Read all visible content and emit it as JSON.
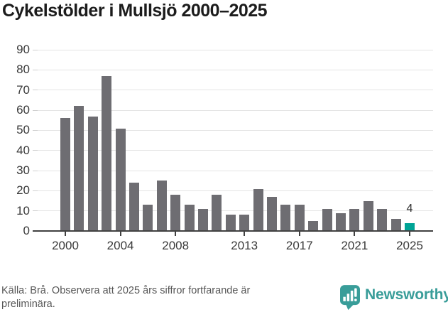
{
  "title": "Cykelstölder i Mullsjö 2000–2025",
  "chart_data": {
    "type": "bar",
    "title": "Cykelstölder i Mullsjö 2000–2025",
    "categories": [
      "2000",
      "2001",
      "2002",
      "2003",
      "2004",
      "2005",
      "2006",
      "2007",
      "2008",
      "2009",
      "2010",
      "2011",
      "2012",
      "2013",
      "2014",
      "2015",
      "2016",
      "2017",
      "2018",
      "2019",
      "2020",
      "2021",
      "2022",
      "2023",
      "2024",
      "2025"
    ],
    "values": [
      56,
      62,
      57,
      77,
      51,
      24,
      13,
      25,
      18,
      13,
      11,
      18,
      8,
      8,
      21,
      17,
      13,
      13,
      5,
      11,
      9,
      11,
      15,
      11,
      6,
      4
    ],
    "xlabel": "",
    "ylabel": "",
    "ylim": [
      0,
      90
    ],
    "y_ticks": [
      0,
      10,
      20,
      30,
      40,
      50,
      60,
      70,
      80,
      90
    ],
    "x_tick_labels": [
      "2000",
      "2004",
      "2008",
      "2013",
      "2017",
      "2021",
      "2025"
    ],
    "grid": true,
    "legend_position": "none",
    "bar_color": "#6e6d72",
    "highlight_category": "2025",
    "highlight_color": "#00a496",
    "highlight_value_label": "4"
  },
  "footer": {
    "source_text": "Källa: Brå. Observera att 2025 års siffror fortfarande är preliminära.",
    "brand_name": "Newsworthy"
  },
  "icons": {
    "brand_icon": "newsworthy-speech-bubble-bar-chart"
  },
  "colors": {
    "title": "#1c1c1c",
    "axis_labels": "#3a3a3a",
    "grid": "#e4e4e4",
    "y_tick": "#cfcfcf",
    "axis_line": "#414141",
    "footer_text": "#565656",
    "brand_teal": "#399d99"
  }
}
